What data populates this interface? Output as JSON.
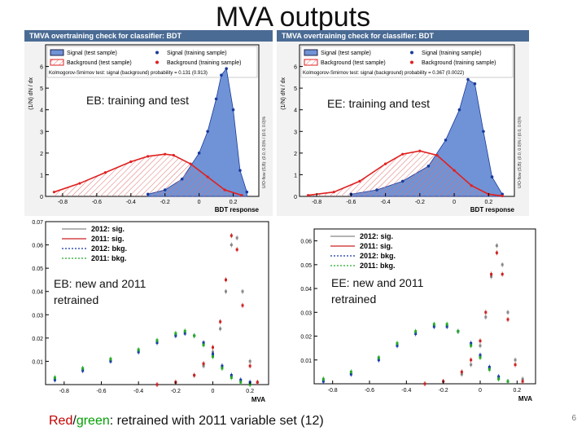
{
  "slide": {
    "title": "MVA outputs",
    "footnote_red": "Red",
    "footnote_sep": "/",
    "footnote_green": "green",
    "footnote_rest": ":  retrained  with 2011 variable set (12)",
    "page_number": "6"
  },
  "colors": {
    "signal_fill": "#6f93d6",
    "signal_marker": "#1a3a9c",
    "background_line": "#e02020",
    "sig2012": "#888888",
    "sig2011": "#cc2222",
    "bkg2012": "#1133aa",
    "bkg2011": "#22aa22"
  },
  "chart_data": [
    {
      "type": "area",
      "panel": "EB-tmva",
      "title": "TMVA overtraining check for classifier: BDT",
      "overlay_label": "EB: training and test",
      "xlabel": "BDT response",
      "ylabel": "(1/N) dN / dx",
      "xlim": [
        -0.9,
        0.35
      ],
      "ylim": [
        0,
        7
      ],
      "xticks": [
        -0.8,
        -0.6,
        -0.4,
        -0.2,
        0,
        0.2
      ],
      "xtick_labels": [
        "-0.8",
        "-0.6",
        "-0.4",
        "-0.2",
        "0",
        "0.2"
      ],
      "yticks": [
        0,
        1,
        2,
        3,
        4,
        5,
        6
      ],
      "legend": [
        "Signal (test sample)",
        "Signal (training sample)",
        "Background (test sample)",
        "Background (training sample)"
      ],
      "ks_text": "Kolmogorov-Smirnov test: signal (background) probability = 0.131 (0.913)",
      "side_note": "U/O-flow (S,B): (0.0, 0.0)% / (0.0, 0.0)%",
      "series": [
        {
          "name": "Signal",
          "x": [
            -0.3,
            -0.2,
            -0.1,
            0.0,
            0.05,
            0.1,
            0.13,
            0.16,
            0.2,
            0.24,
            0.28
          ],
          "y": [
            0.1,
            0.3,
            0.8,
            2.0,
            3.0,
            4.5,
            5.6,
            5.9,
            4.0,
            1.2,
            0.2
          ]
        },
        {
          "name": "Background",
          "x": [
            -0.85,
            -0.7,
            -0.55,
            -0.4,
            -0.3,
            -0.2,
            -0.15,
            -0.05,
            0.05,
            0.15,
            0.25
          ],
          "y": [
            0.2,
            0.6,
            1.1,
            1.6,
            1.85,
            1.95,
            1.9,
            1.5,
            0.9,
            0.3,
            0.05
          ]
        }
      ]
    },
    {
      "type": "area",
      "panel": "EE-tmva",
      "title": "TMVA overtraining check for classifier: BDT",
      "overlay_label": "EE: training and test",
      "xlabel": "BDT response",
      "ylabel": "(1/N) dN / dx",
      "xlim": [
        -0.9,
        0.35
      ],
      "ylim": [
        0,
        7
      ],
      "xticks": [
        -0.8,
        -0.6,
        -0.4,
        -0.2,
        0,
        0.2
      ],
      "xtick_labels": [
        "-0.8",
        "-0.6",
        "-0.4",
        "-0.2",
        "0",
        "0.2"
      ],
      "yticks": [
        0,
        1,
        2,
        3,
        4,
        5,
        6
      ],
      "legend": [
        "Signal (test sample)",
        "Signal (training sample)",
        "Background (test sample)",
        "Background (training sample)"
      ],
      "ks_text": "Kolmogorov-Smirnov test: signal (background) probability = 0.367 (0.0022)",
      "side_note": "U/O-flow (S,B): (0.0, 0.0)% / (0.0, 0.0)%",
      "series": [
        {
          "name": "Signal",
          "x": [
            -0.6,
            -0.45,
            -0.3,
            -0.15,
            -0.05,
            0.03,
            0.08,
            0.12,
            0.17,
            0.22,
            0.28
          ],
          "y": [
            0.1,
            0.3,
            0.7,
            1.4,
            2.6,
            4.0,
            5.4,
            5.2,
            3.0,
            0.9,
            0.1
          ]
        },
        {
          "name": "Background",
          "x": [
            -0.85,
            -0.7,
            -0.55,
            -0.4,
            -0.3,
            -0.2,
            -0.1,
            0.0,
            0.1,
            0.2,
            0.28
          ],
          "y": [
            0.05,
            0.2,
            0.7,
            1.5,
            1.95,
            2.1,
            1.9,
            1.2,
            0.5,
            0.1,
            0.02
          ]
        }
      ]
    },
    {
      "type": "scatter",
      "panel": "EB-retrained",
      "overlay_label_1": "EB:  new and 2011",
      "overlay_label_2": "retrained",
      "xlabel": "MVA",
      "xlim": [
        -0.9,
        0.3
      ],
      "ylim": [
        0,
        0.07
      ],
      "xticks": [
        -0.8,
        -0.6,
        -0.4,
        -0.2,
        0,
        0.2
      ],
      "xtick_labels": [
        "-0.8",
        "-0.6",
        "-0.4",
        "-0.2",
        "0",
        "0.2"
      ],
      "yticks": [
        0.01,
        0.02,
        0.03,
        0.04,
        0.05,
        0.06,
        0.07
      ],
      "ytick_labels": [
        "0.01",
        "0.02",
        "0.03",
        "0.04",
        "0.05",
        "0.06",
        "0.07"
      ],
      "legend": [
        "2012: sig.",
        "2011: sig.",
        "2012: bkg.",
        "2011: bkg."
      ],
      "series": [
        {
          "name": "2012: sig.",
          "x": [
            -0.3,
            -0.2,
            -0.1,
            -0.05,
            0.0,
            0.04,
            0.07,
            0.1,
            0.13,
            0.16,
            0.2,
            0.24
          ],
          "y": [
            0.0,
            0.001,
            0.004,
            0.008,
            0.014,
            0.024,
            0.04,
            0.06,
            0.063,
            0.04,
            0.01,
            0.001
          ]
        },
        {
          "name": "2011: sig.",
          "x": [
            -0.3,
            -0.2,
            -0.1,
            -0.05,
            0.0,
            0.04,
            0.07,
            0.1,
            0.13,
            0.16,
            0.2,
            0.24
          ],
          "y": [
            0.0,
            0.001,
            0.004,
            0.009,
            0.016,
            0.027,
            0.045,
            0.064,
            0.058,
            0.034,
            0.008,
            0.001
          ]
        },
        {
          "name": "2012: bkg.",
          "x": [
            -0.85,
            -0.7,
            -0.55,
            -0.4,
            -0.3,
            -0.2,
            -0.15,
            -0.1,
            -0.05,
            0.0,
            0.05,
            0.1,
            0.15,
            0.2
          ],
          "y": [
            0.002,
            0.006,
            0.01,
            0.014,
            0.018,
            0.021,
            0.022,
            0.021,
            0.018,
            0.013,
            0.008,
            0.004,
            0.002,
            0.001
          ]
        },
        {
          "name": "2011: bkg.",
          "x": [
            -0.85,
            -0.7,
            -0.55,
            -0.4,
            -0.3,
            -0.2,
            -0.15,
            -0.1,
            -0.05,
            0.0,
            0.05,
            0.1,
            0.15,
            0.2
          ],
          "y": [
            0.003,
            0.007,
            0.011,
            0.015,
            0.019,
            0.022,
            0.023,
            0.021,
            0.017,
            0.012,
            0.007,
            0.003,
            0.001,
            0.0
          ]
        }
      ]
    },
    {
      "type": "scatter",
      "panel": "EE-retrained",
      "overlay_label_1": "EE:  new and 2011",
      "overlay_label_2": "retrained",
      "xlabel": "MVA",
      "xlim": [
        -0.9,
        0.3
      ],
      "ylim": [
        0,
        0.065
      ],
      "xticks": [
        -0.8,
        -0.6,
        -0.4,
        -0.2,
        0,
        0.2
      ],
      "xtick_labels": [
        "-0.8",
        "-0.6",
        "-0.4",
        "-0.2",
        "0",
        "0.2"
      ],
      "yticks": [
        0.01,
        0.02,
        0.03,
        0.04,
        0.05,
        0.06
      ],
      "ytick_labels": [
        "0.01",
        "0.02",
        "0.03",
        "0.04",
        "0.05",
        "0.06"
      ],
      "legend": [
        "2012: sig.",
        "2011: sig.",
        "2012: bkg.",
        "2011: bkg."
      ],
      "series": [
        {
          "name": "2012: sig.",
          "x": [
            -0.3,
            -0.2,
            -0.1,
            -0.05,
            0.0,
            0.03,
            0.06,
            0.09,
            0.12,
            0.15,
            0.19,
            0.23
          ],
          "y": [
            0.0,
            0.001,
            0.004,
            0.008,
            0.016,
            0.028,
            0.045,
            0.058,
            0.05,
            0.03,
            0.01,
            0.002
          ]
        },
        {
          "name": "2011: sig.",
          "x": [
            -0.3,
            -0.2,
            -0.1,
            -0.05,
            0.0,
            0.03,
            0.06,
            0.09,
            0.12,
            0.15,
            0.19,
            0.23
          ],
          "y": [
            0.0,
            0.001,
            0.005,
            0.01,
            0.018,
            0.03,
            0.046,
            0.055,
            0.046,
            0.027,
            0.008,
            0.001
          ]
        },
        {
          "name": "2012: bkg.",
          "x": [
            -0.85,
            -0.7,
            -0.55,
            -0.45,
            -0.35,
            -0.25,
            -0.18,
            -0.12,
            -0.05,
            0.0,
            0.05,
            0.1,
            0.15
          ],
          "y": [
            0.001,
            0.004,
            0.01,
            0.016,
            0.021,
            0.024,
            0.024,
            0.022,
            0.017,
            0.012,
            0.007,
            0.003,
            0.001
          ]
        },
        {
          "name": "2011: bkg.",
          "x": [
            -0.85,
            -0.7,
            -0.55,
            -0.45,
            -0.35,
            -0.25,
            -0.18,
            -0.12,
            -0.05,
            0.0,
            0.05,
            0.1,
            0.15
          ],
          "y": [
            0.002,
            0.005,
            0.011,
            0.017,
            0.022,
            0.025,
            0.025,
            0.022,
            0.016,
            0.011,
            0.006,
            0.002,
            0.001
          ]
        }
      ]
    }
  ]
}
